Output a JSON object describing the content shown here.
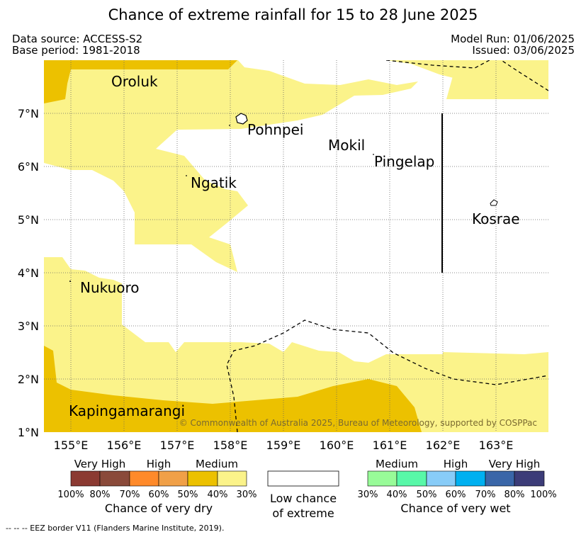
{
  "title": "Chance of extreme rainfall for 15 to 28 June 2025",
  "data_source": "Data source: ACCESS-S2",
  "base_period": "Base period: 1981-2018",
  "model_run": "Model Run: 01/06/2025",
  "issued": "Issued: 03/06/2025",
  "copyright": "© Commonwealth of Australia 2025, Bureau of Meteorology, supported by COSPPac",
  "map": {
    "lon_range": [
      154.5,
      164.0
    ],
    "lat_range": [
      1.0,
      8.0
    ],
    "x_ticks": [
      "155°E",
      "156°E",
      "157°E",
      "158°E",
      "159°E",
      "160°E",
      "161°E",
      "162°E",
      "163°E"
    ],
    "y_ticks": [
      "1°N",
      "2°N",
      "3°N",
      "4°N",
      "5°N",
      "6°N",
      "7°N"
    ],
    "places": [
      "Oroluk",
      "Pohnpei",
      "Mokil",
      "Pingelap",
      "Ngatik",
      "Kosrae",
      "Nukuoro",
      "Kapingamarangi"
    ],
    "colors": {
      "medium_dry_40_50": "#ecc100",
      "medium_dry_30_40": "#fbf38a",
      "low_chance": "#ffffff"
    }
  },
  "legend": {
    "dry": {
      "categories": [
        "Very High",
        "High",
        "Medium"
      ],
      "scale": [
        "100%",
        "80%",
        "70%",
        "60%",
        "50%",
        "40%",
        "30%"
      ],
      "title": "Chance of very dry",
      "colors": [
        "#8b3a32",
        "#8a4a3a",
        "#ff8a2a",
        "#f0a048",
        "#ecc100",
        "#fbf38a"
      ]
    },
    "low": {
      "line1": "Low chance",
      "line2": "of extreme"
    },
    "wet": {
      "categories": [
        "Medium",
        "High",
        "Very High"
      ],
      "scale": [
        "30%",
        "40%",
        "50%",
        "60%",
        "70%",
        "80%",
        "100%"
      ],
      "title": "Chance of very wet",
      "colors": [
        "#98fb98",
        "#58f8a8",
        "#88ccf8",
        "#00b0f0",
        "#3a66a8",
        "#3c3c78"
      ]
    }
  },
  "footnote": "--  --  -- EEZ border V11 (Flanders Marine Institute, 2019)."
}
